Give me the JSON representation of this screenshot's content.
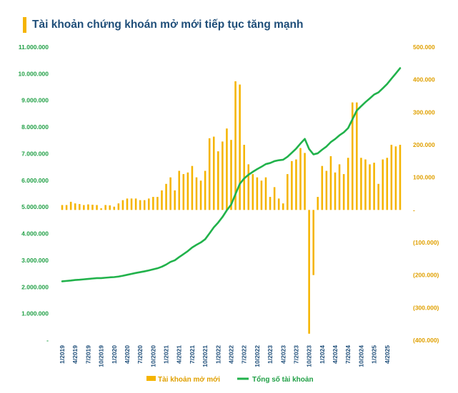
{
  "chart_data": {
    "type": "bar+line",
    "title": "Tài khoản chứng khoán mở mới tiếp tục tăng mạnh",
    "colors": {
      "bar": "#f5b400",
      "line": "#21b24b",
      "title": "#1f4e79",
      "left_axis": "#21a046",
      "right_axis": "#e0a000",
      "x_axis": "#1f4e79",
      "title_bar": "#f5b400"
    },
    "x_tick_labels": [
      "1/2019",
      "4/2019",
      "7/2019",
      "10/2019",
      "1/2020",
      "4/2020",
      "7/2020",
      "10/2020",
      "1/2021",
      "4/2021",
      "7/2021",
      "10/2021",
      "1/2022",
      "4/2022",
      "7/2022",
      "10/2022",
      "1/2023",
      "4/2023",
      "7/2023",
      "10/2023",
      "1/2024",
      "4/2024",
      "7/2024",
      "10/2024",
      "1/2025",
      "4/2025"
    ],
    "left_axis": {
      "label": "Tổng số tài khoản",
      "ylim": [
        0,
        11000000
      ],
      "ticks": [
        0,
        1000000,
        2000000,
        3000000,
        4000000,
        5000000,
        6000000,
        7000000,
        8000000,
        9000000,
        10000000,
        11000000
      ],
      "tick_labels": [
        "-",
        "1.000.000",
        "2.000.000",
        "3.000.000",
        "4.000.000",
        "5.000.000",
        "6.000.000",
        "7.000.000",
        "8.000.000",
        "9.000.000",
        "10.000.000",
        "11.000.000"
      ]
    },
    "right_axis": {
      "label": "Tài khoản mở mới",
      "ylim": [
        -400000,
        500000
      ],
      "ticks": [
        500000,
        400000,
        300000,
        200000,
        100000,
        0,
        -100000,
        -200000,
        -300000,
        -400000
      ],
      "tick_labels": [
        "500.000",
        "400.000",
        "300.000",
        "200.000",
        "100.000",
        "-",
        "(100.000)",
        "(200.000)",
        "(300.000)",
        "(400.000)"
      ]
    },
    "series": [
      {
        "name": "Tài khoản mở mới",
        "type": "bar",
        "axis": "right",
        "values": [
          15000,
          15000,
          25000,
          20000,
          18000,
          15000,
          17000,
          16000,
          15000,
          5000,
          15000,
          14000,
          10000,
          20000,
          30000,
          35000,
          35000,
          35000,
          30000,
          30000,
          35000,
          40000,
          40000,
          60000,
          80000,
          100000,
          60000,
          120000,
          110000,
          115000,
          135000,
          100000,
          90000,
          120000,
          220000,
          225000,
          180000,
          210000,
          250000,
          215000,
          395000,
          385000,
          200000,
          140000,
          110000,
          100000,
          90000,
          100000,
          40000,
          70000,
          35000,
          20000,
          110000,
          150000,
          155000,
          190000,
          175000,
          -380000,
          -200000,
          40000,
          135000,
          120000,
          165000,
          115000,
          140000,
          110000,
          160000,
          330000,
          330000,
          160000,
          155000,
          140000,
          145000,
          80000,
          155000,
          160000,
          200000,
          195000,
          200000
        ]
      },
      {
        "name": "Tổng số tài khoản",
        "type": "line",
        "axis": "left",
        "values": [
          2210000,
          2225000,
          2240000,
          2260000,
          2270000,
          2285000,
          2300000,
          2315000,
          2330000,
          2330000,
          2345000,
          2359000,
          2369000,
          2389000,
          2419000,
          2454000,
          2489000,
          2524000,
          2554000,
          2584000,
          2619000,
          2659000,
          2699000,
          2759000,
          2839000,
          2939000,
          2999000,
          3119000,
          3229000,
          3344000,
          3479000,
          3579000,
          3669000,
          3789000,
          4009000,
          4234000,
          4414000,
          4624000,
          4874000,
          5089000,
          5484000,
          5869000,
          6069000,
          6209000,
          6319000,
          6419000,
          6509000,
          6609000,
          6649000,
          6719000,
          6754000,
          6774000,
          6884000,
          7034000,
          7189000,
          7379000,
          7554000,
          7174000,
          6974000,
          7014000,
          7149000,
          7269000,
          7434000,
          7549000,
          7689000,
          7799000,
          7959000,
          8289000,
          8619000,
          8779000,
          8934000,
          9074000,
          9219000,
          9299000,
          9454000,
          9614000,
          9814000,
          10009000,
          10209000
        ]
      }
    ],
    "legend": [
      "Tài khoản mở mới",
      "Tổng số tài khoản"
    ],
    "legend_position": "bottom"
  }
}
